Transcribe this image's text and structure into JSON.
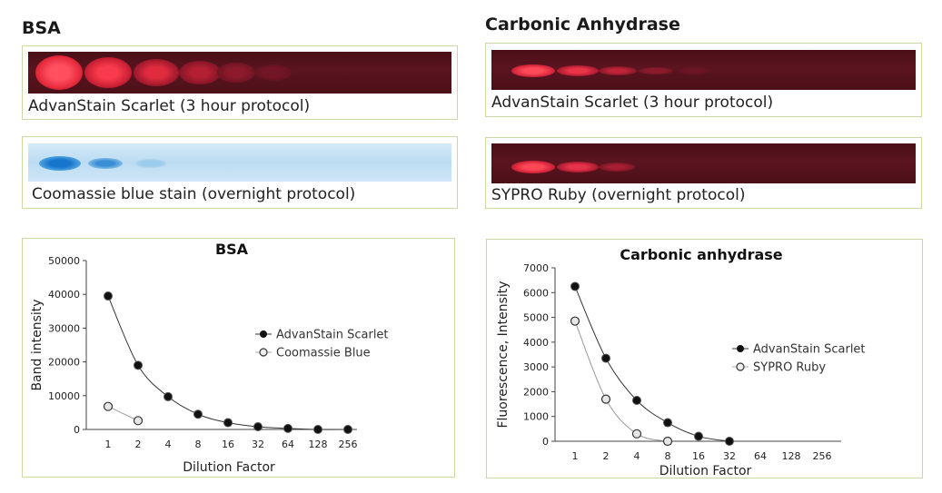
{
  "left_title": "BSA",
  "right_title": "Carbonic Anhydrase",
  "gels": {
    "bsa_scarlet_caption": "AdvanStain Scarlet (3 hour protocol)",
    "bsa_coomassie_caption": "Coomassie blue stain (overnight protocol)",
    "ca_scarlet_caption": "AdvanStain Scarlet (3 hour protocol)",
    "ca_sypro_caption": "SYPRO Ruby (overnight protocol)",
    "colors": {
      "red_gel": "#4f111b",
      "red_band": "#ff3a4a",
      "blue_gel": "#c4e0f4",
      "blue_band": "#1f86d6"
    }
  },
  "chart_data": [
    {
      "type": "line",
      "title": "BSA",
      "xlabel": "Dilution Factor",
      "ylabel": "Band intensity",
      "categories": [
        "1",
        "2",
        "4",
        "8",
        "16",
        "32",
        "64",
        "128",
        "256"
      ],
      "yticks": [
        "0",
        "10000",
        "20000",
        "30000",
        "40000",
        "50000"
      ],
      "ylim": [
        0,
        50000
      ],
      "legend_position": "right",
      "series": [
        {
          "name": "AdvanStain Scarlet",
          "marker": "filled",
          "color": "#111111",
          "values": [
            39500,
            19000,
            9700,
            4500,
            2000,
            800,
            300,
            0,
            0
          ]
        },
        {
          "name": "Coomassie Blue",
          "marker": "open",
          "color": "#888888",
          "values": [
            6800,
            2600,
            null,
            null,
            null,
            null,
            null,
            null,
            null
          ]
        }
      ]
    },
    {
      "type": "line",
      "title": "Carbonic anhydrase",
      "xlabel": "Dilution Factor",
      "ylabel": "Fluorescence, Intensity",
      "categories": [
        "1",
        "2",
        "4",
        "8",
        "16",
        "32",
        "64",
        "128",
        "256"
      ],
      "yticks": [
        "0",
        "1000",
        "2000",
        "3000",
        "4000",
        "5000",
        "6000",
        "7000"
      ],
      "ylim": [
        0,
        7000
      ],
      "legend_position": "right",
      "series": [
        {
          "name": "AdvanStain Scarlet",
          "marker": "filled",
          "color": "#111111",
          "values": [
            6250,
            3350,
            1650,
            750,
            200,
            0,
            null,
            null,
            null
          ]
        },
        {
          "name": "SYPRO Ruby",
          "marker": "open",
          "color": "#888888",
          "values": [
            4850,
            1700,
            300,
            0,
            null,
            null,
            null,
            null,
            null
          ]
        }
      ]
    }
  ]
}
